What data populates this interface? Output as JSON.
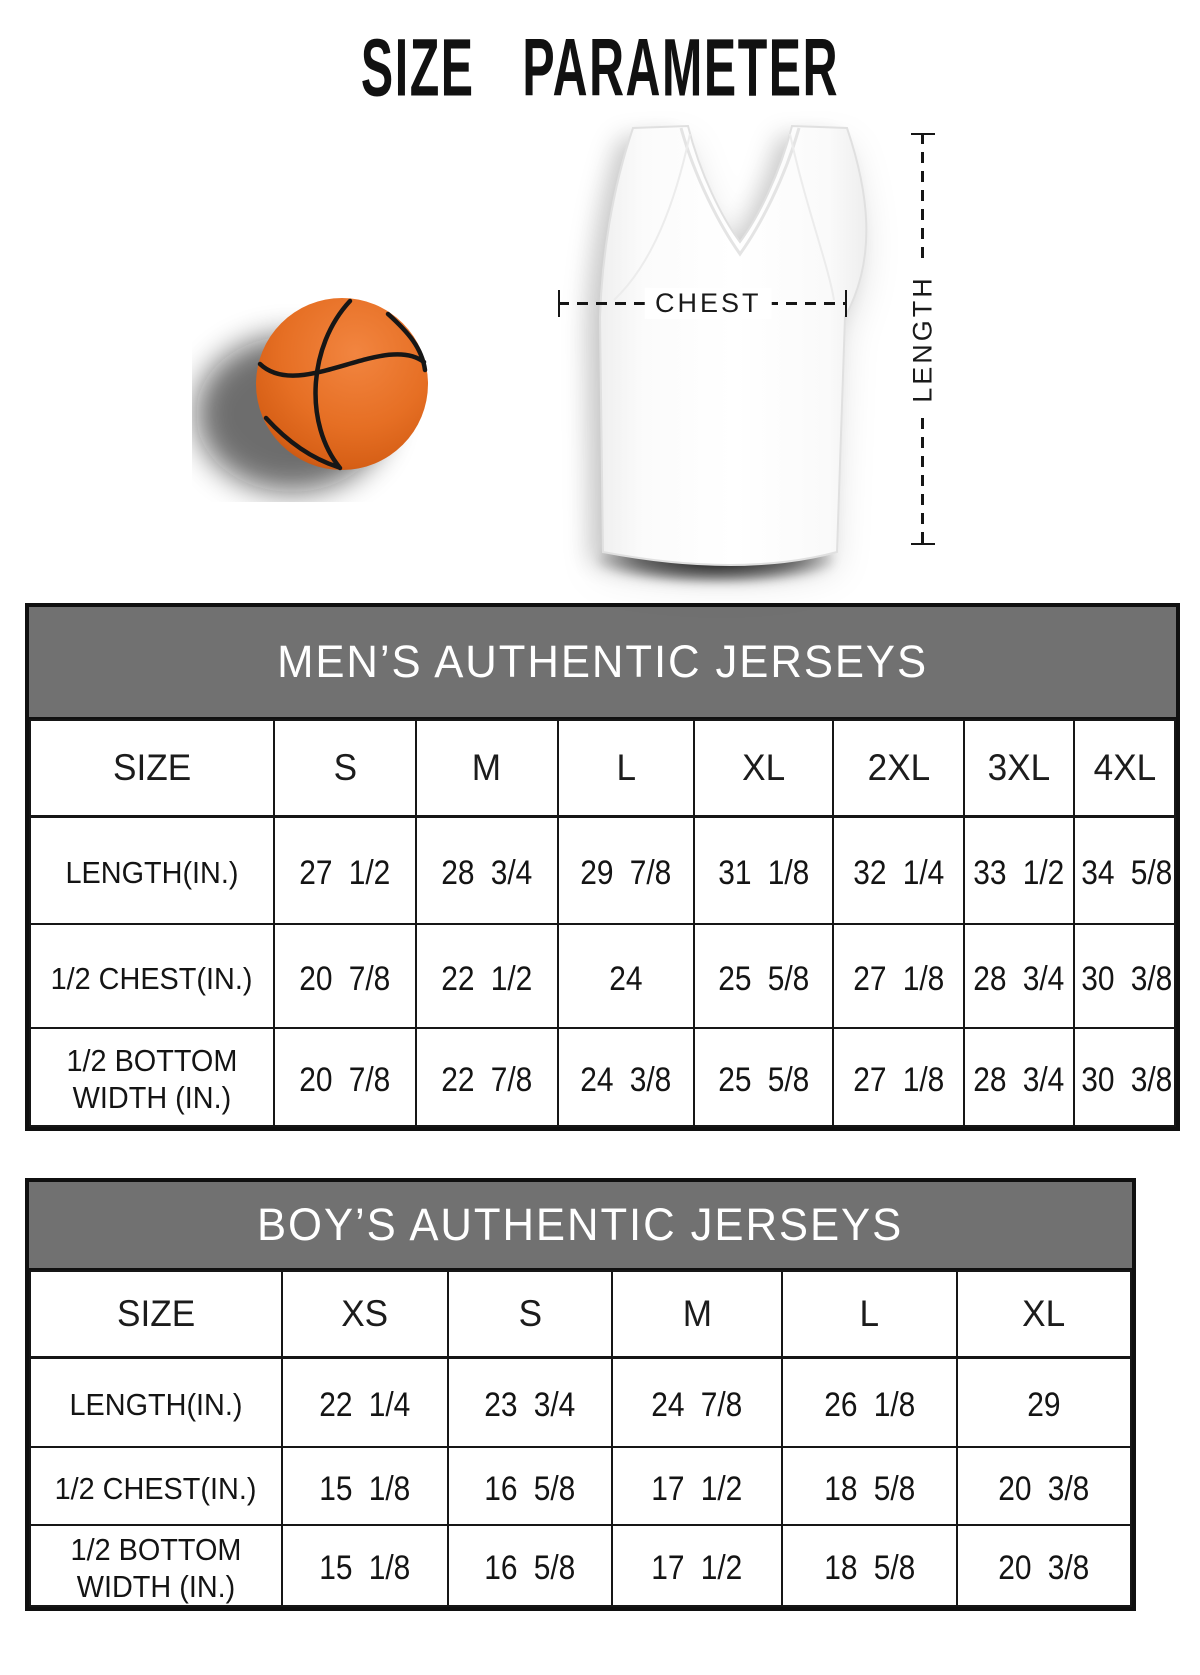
{
  "page_title": "SIZE  PARAMETER",
  "diagram": {
    "chest_label": "CHEST",
    "length_label": "LENGTH"
  },
  "tables": [
    {
      "title": "MEN’S AUTHENTIC JERSEYS",
      "columns": [
        "SIZE",
        "S",
        "M",
        "L",
        "XL",
        "2XL",
        "3XL",
        "4XL"
      ],
      "rows": [
        {
          "label": "LENGTH(IN.)",
          "values": [
            "27 1/2",
            "28 3/4",
            "29 7/8",
            "31 1/8",
            "32 1/4",
            "33 1/2",
            "34 5/8"
          ]
        },
        {
          "label": "1/2 CHEST(IN.)",
          "values": [
            "20 7/8",
            "22 1/2",
            "24",
            "25 5/8",
            "27 1/8",
            "28 3/4",
            "30 3/8"
          ]
        },
        {
          "label": "1/2 BOTTOM WIDTH (IN.)",
          "values": [
            "20 7/8",
            "22 7/8",
            "24 3/8",
            "25 5/8",
            "27 1/8",
            "28 3/4",
            "30 3/8"
          ]
        }
      ]
    },
    {
      "title": "BOY’S AUTHENTIC JERSEYS",
      "columns": [
        "SIZE",
        "XS",
        "S",
        "M",
        "L",
        "XL"
      ],
      "rows": [
        {
          "label": "LENGTH(IN.)",
          "values": [
            "22 1/4",
            "23 3/4",
            "24 7/8",
            "26 1/8",
            "29"
          ]
        },
        {
          "label": "1/2 CHEST(IN.)",
          "values": [
            "15 1/8",
            "16 5/8",
            "17 1/2",
            "18 5/8",
            "20 3/8"
          ]
        },
        {
          "label": "1/2 BOTTOM WIDTH (IN.)",
          "values": [
            "15 1/8",
            "16 5/8",
            "17 1/2",
            "18 5/8",
            "20 3/8"
          ]
        }
      ]
    }
  ],
  "colors": {
    "table_header_bg": "#717171",
    "table_header_text": "#ffffff",
    "border": "#161616",
    "basketball_orange": "#e66f24",
    "title_text": "#111111"
  }
}
